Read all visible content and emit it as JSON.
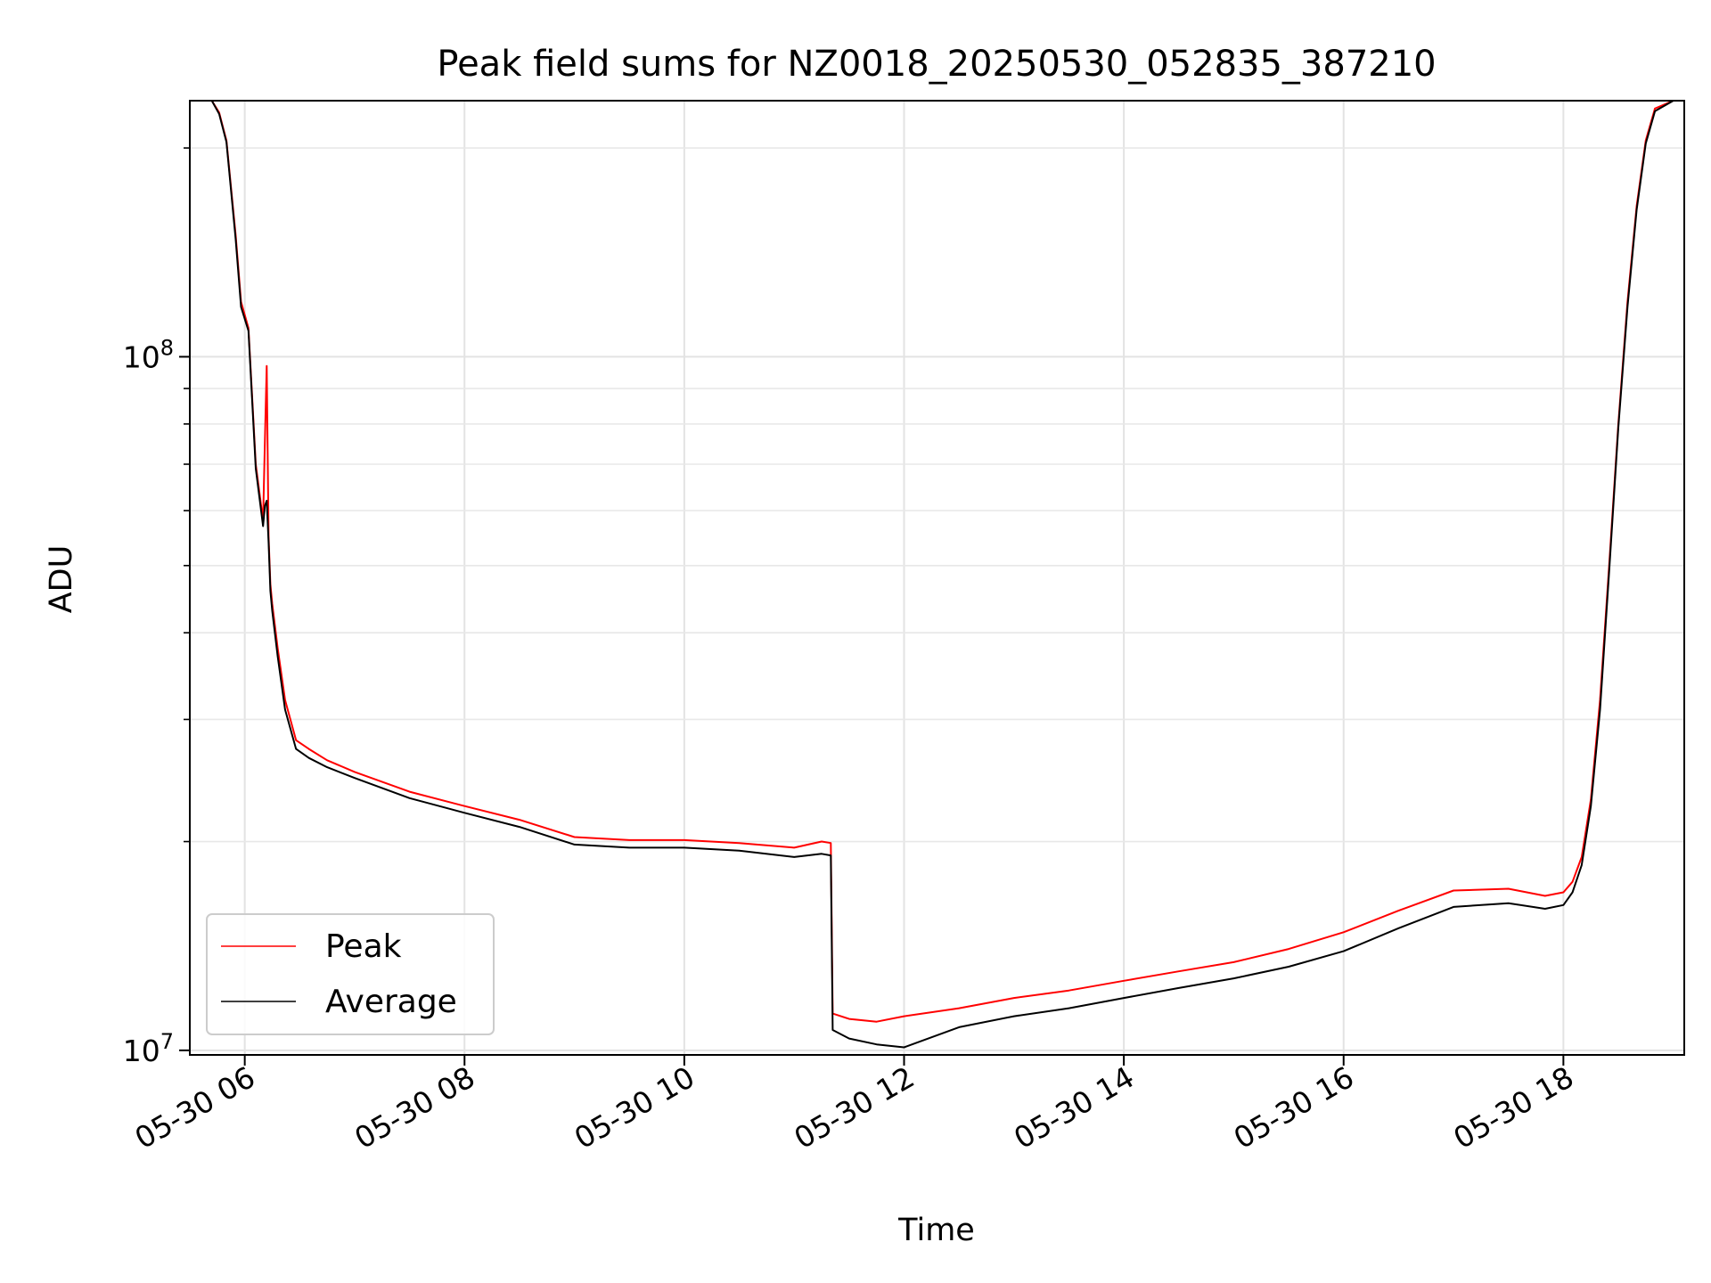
{
  "chart_data": {
    "type": "line",
    "title": "Peak field sums for NZ0018_20250530_052835_387210",
    "xlabel": "Time",
    "ylabel": "ADU",
    "x_ticks": [
      "05-30 06",
      "05-30 08",
      "05-30 10",
      "05-30 12",
      "05-30 14",
      "05-30 16",
      "05-30 18"
    ],
    "y_ticks": [
      {
        "base": "10",
        "exp": "7",
        "value": 10000000
      },
      {
        "base": "10",
        "exp": "8",
        "value": 100000000
      }
    ],
    "xlim": [
      "2025-05-30 05:30",
      "2025-05-30 19:06"
    ],
    "ylim": [
      9850000,
      234000000
    ],
    "yscale": "log",
    "grid": true,
    "legend_position": "lower left",
    "series": [
      {
        "name": "Peak",
        "color": "#ff0000",
        "x": [
          "2025-05-30 05:42",
          "2025-05-30 05:46",
          "2025-05-30 05:50",
          "2025-05-30 05:55",
          "2025-05-30 05:58",
          "2025-05-30 06:02",
          "2025-05-30 06:06",
          "2025-05-30 06:10",
          "2025-05-30 06:11",
          "2025-05-30 06:12",
          "2025-05-30 06:13",
          "2025-05-30 06:14",
          "2025-05-30 06:15",
          "2025-05-30 06:18",
          "2025-05-30 06:22",
          "2025-05-30 06:28",
          "2025-05-30 06:35",
          "2025-05-30 06:45",
          "2025-05-30 07:00",
          "2025-05-30 07:30",
          "2025-05-30 08:00",
          "2025-05-30 08:30",
          "2025-05-30 09:00",
          "2025-05-30 09:30",
          "2025-05-30 10:00",
          "2025-05-30 10:30",
          "2025-05-30 11:00",
          "2025-05-30 11:15",
          "2025-05-30 11:20",
          "2025-05-30 11:21",
          "2025-05-30 11:30",
          "2025-05-30 11:45",
          "2025-05-30 12:00",
          "2025-05-30 12:30",
          "2025-05-30 13:00",
          "2025-05-30 13:30",
          "2025-05-30 14:00",
          "2025-05-30 14:30",
          "2025-05-30 15:00",
          "2025-05-30 15:30",
          "2025-05-30 16:00",
          "2025-05-30 16:30",
          "2025-05-30 17:00",
          "2025-05-30 17:30",
          "2025-05-30 17:50",
          "2025-05-30 18:00",
          "2025-05-30 18:05",
          "2025-05-30 18:10",
          "2025-05-30 18:15",
          "2025-05-30 18:20",
          "2025-05-30 18:25",
          "2025-05-30 18:30",
          "2025-05-30 18:35",
          "2025-05-30 18:40",
          "2025-05-30 18:45",
          "2025-05-30 18:50",
          "2025-05-30 19:00",
          "2025-05-30 19:06"
        ],
        "y": [
          234000000,
          225000000,
          205000000,
          150000000,
          120000000,
          110000000,
          70000000,
          58000000,
          76000000,
          97000000,
          55000000,
          47000000,
          44000000,
          38000000,
          32000000,
          28000000,
          27200000,
          26200000,
          25200000,
          23600000,
          22500000,
          21500000,
          20300000,
          20100000,
          20100000,
          19900000,
          19600000,
          20000000,
          19900000,
          11300000,
          11100000,
          11000000,
          11200000,
          11500000,
          11900000,
          12200000,
          12600000,
          13000000,
          13400000,
          14000000,
          14800000,
          15900000,
          17000000,
          17100000,
          16700000,
          16900000,
          17500000,
          19000000,
          23000000,
          32000000,
          50000000,
          80000000,
          120000000,
          165000000,
          205000000,
          228000000,
          234000000,
          234000000
        ]
      },
      {
        "name": "Average",
        "color": "#000000",
        "x": [
          "2025-05-30 05:42",
          "2025-05-30 05:46",
          "2025-05-30 05:50",
          "2025-05-30 05:55",
          "2025-05-30 05:58",
          "2025-05-30 06:02",
          "2025-05-30 06:06",
          "2025-05-30 06:10",
          "2025-05-30 06:11",
          "2025-05-30 06:12",
          "2025-05-30 06:13",
          "2025-05-30 06:14",
          "2025-05-30 06:15",
          "2025-05-30 06:18",
          "2025-05-30 06:22",
          "2025-05-30 06:28",
          "2025-05-30 06:35",
          "2025-05-30 06:45",
          "2025-05-30 07:00",
          "2025-05-30 07:30",
          "2025-05-30 08:00",
          "2025-05-30 08:30",
          "2025-05-30 09:00",
          "2025-05-30 09:30",
          "2025-05-30 10:00",
          "2025-05-30 10:30",
          "2025-05-30 11:00",
          "2025-05-30 11:15",
          "2025-05-30 11:20",
          "2025-05-30 11:21",
          "2025-05-30 11:30",
          "2025-05-30 11:45",
          "2025-05-30 12:00",
          "2025-05-30 12:30",
          "2025-05-30 13:00",
          "2025-05-30 13:30",
          "2025-05-30 14:00",
          "2025-05-30 14:30",
          "2025-05-30 15:00",
          "2025-05-30 15:30",
          "2025-05-30 16:00",
          "2025-05-30 16:30",
          "2025-05-30 17:00",
          "2025-05-30 17:30",
          "2025-05-30 17:50",
          "2025-05-30 18:00",
          "2025-05-30 18:05",
          "2025-05-30 18:10",
          "2025-05-30 18:15",
          "2025-05-30 18:20",
          "2025-05-30 18:25",
          "2025-05-30 18:30",
          "2025-05-30 18:35",
          "2025-05-30 18:40",
          "2025-05-30 18:45",
          "2025-05-30 18:50",
          "2025-05-30 19:00",
          "2025-05-30 19:06"
        ],
        "y": [
          234000000,
          224000000,
          204000000,
          148000000,
          118000000,
          109000000,
          69000000,
          57000000,
          61000000,
          62000000,
          54000000,
          46000000,
          43000000,
          37000000,
          31000000,
          27200000,
          26400000,
          25600000,
          24700000,
          23100000,
          22000000,
          21000000,
          19800000,
          19600000,
          19600000,
          19400000,
          19000000,
          19200000,
          19100000,
          10700000,
          10400000,
          10200000,
          10100000,
          10800000,
          11200000,
          11500000,
          11900000,
          12300000,
          12700000,
          13200000,
          13900000,
          15000000,
          16100000,
          16300000,
          16000000,
          16200000,
          16900000,
          18500000,
          22500000,
          31000000,
          49000000,
          79000000,
          118000000,
          163000000,
          203000000,
          226000000,
          234000000,
          234000000
        ]
      }
    ]
  }
}
